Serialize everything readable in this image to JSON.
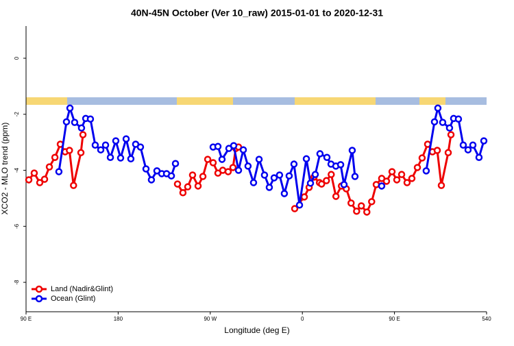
{
  "chart_data": {
    "type": "line",
    "title": "40N-45N October (Ver 10_raw)   2015-01-01 to 2020-12-31",
    "x_label": "Longitude (deg E)",
    "y_label": "XCO2 - MLO trend (ppm)",
    "xlim": [
      90,
      540
    ],
    "ylim": [
      -9.05,
      1.15
    ],
    "xticks": [
      {
        "value": 90,
        "label": "90 E"
      },
      180,
      {
        "value": 270,
        "label": "90 W"
      },
      {
        "value": 360,
        "label": "0"
      },
      {
        "value": 450,
        "label": "90 E"
      },
      540
    ],
    "yticks": [
      0,
      -2,
      -4,
      -6,
      -8
    ],
    "legend": "bottom-left",
    "series": [
      {
        "name": "Land (Nadir&Glint)",
        "color": "#ee0000",
        "x": [
          92.7,
          98.0,
          103.4,
          108.1,
          112.8,
          118.2,
          123.5,
          128.2,
          132.4,
          136.4,
          143.6,
          145.6,
          200,
          238.0,
          243.3,
          248.0,
          252.7,
          258.1,
          262.8,
          267.5,
          272.8,
          277.5,
          282.2,
          287.5,
          292.2,
          294.9,
          297.6,
          330,
          352.5,
          361.9,
          366.6,
          371.4,
          376.7,
          378.8,
          383.5,
          388.2,
          392.8,
          398.2,
          402.9,
          407.6,
          413.0,
          417.6,
          423.0,
          427.7,
          432.2,
          437.5,
          442.2,
          447.6,
          452.3,
          457.0,
          462.3,
          467.0,
          472.4,
          477.0,
          482.4,
          487.1,
          491.8,
          495.8,
          502.5,
          505.2
        ],
        "values": [
          -4.34,
          -4.1,
          -4.44,
          -4.32,
          -3.88,
          -3.54,
          -3.07,
          -3.34,
          -3.29,
          -4.54,
          -3.37,
          -2.73,
          null,
          -4.49,
          -4.8,
          -4.59,
          -4.17,
          -4.56,
          -4.22,
          -3.61,
          -3.73,
          -4.1,
          -4.0,
          -4.05,
          -3.9,
          -3.22,
          -3.17,
          null,
          -5.37,
          -4.95,
          -4.61,
          -4.24,
          -4.44,
          -4.49,
          -4.37,
          -4.15,
          -4.93,
          -4.56,
          -4.66,
          -5.17,
          -5.46,
          -5.27,
          -5.49,
          -5.12,
          -4.51,
          -4.29,
          -4.39,
          -4.05,
          -4.34,
          -4.15,
          -4.44,
          -4.29,
          -3.9,
          -3.56,
          -3.07,
          -3.34,
          -3.29,
          -4.54,
          -3.37,
          -2.73
        ]
      },
      {
        "name": "Ocean (Glint)",
        "color": "#0000ee",
        "x": [
          122.1,
          129.5,
          132.9,
          137.5,
          144.2,
          148.3,
          152.9,
          157.6,
          163.0,
          167.7,
          172.4,
          177.7,
          182.4,
          187.8,
          192.4,
          197.1,
          201.8,
          207.2,
          212.5,
          217.9,
          222.6,
          227.3,
          232.0,
          236.0,
          255,
          272.8,
          277.5,
          281.5,
          288.2,
          292.9,
          297.6,
          302.3,
          306.9,
          312.3,
          317.7,
          323.0,
          327.7,
          332.4,
          337.7,
          342.4,
          347.1,
          351.8,
          357.2,
          363.9,
          367.9,
          372.6,
          377.2,
          384.0,
          388.0,
          392.7,
          397.4,
          400.7,
          408.7,
          411.4,
          430,
          437.5,
          480,
          481.0,
          489.1,
          492.4,
          497.1,
          503.8,
          507.8,
          512.5,
          517.2,
          521.9,
          526.6,
          532.6,
          537.3
        ],
        "values": [
          -4.05,
          -2.27,
          -1.78,
          -2.29,
          -2.49,
          -2.15,
          -2.17,
          -3.1,
          -3.27,
          -3.1,
          -3.54,
          -2.95,
          -3.56,
          -2.88,
          -3.59,
          -3.07,
          -3.17,
          -3.95,
          -4.34,
          -4.02,
          -4.12,
          -4.12,
          -4.2,
          -3.76,
          null,
          -3.17,
          -3.15,
          -3.61,
          -3.22,
          -3.12,
          -4.0,
          -3.27,
          -3.85,
          -4.44,
          -3.61,
          -4.17,
          -4.61,
          -4.27,
          -4.17,
          -4.83,
          -4.2,
          -3.78,
          -5.24,
          -3.59,
          -4.46,
          -4.15,
          -3.41,
          -3.54,
          -3.78,
          -3.85,
          -3.8,
          -4.51,
          -3.29,
          -4.22,
          null,
          -4.56,
          null,
          -4.02,
          -2.27,
          -1.78,
          -2.29,
          -2.49,
          -2.15,
          -2.17,
          -3.1,
          -3.27,
          -3.1,
          -3.54,
          -2.95
        ]
      }
    ]
  }
}
